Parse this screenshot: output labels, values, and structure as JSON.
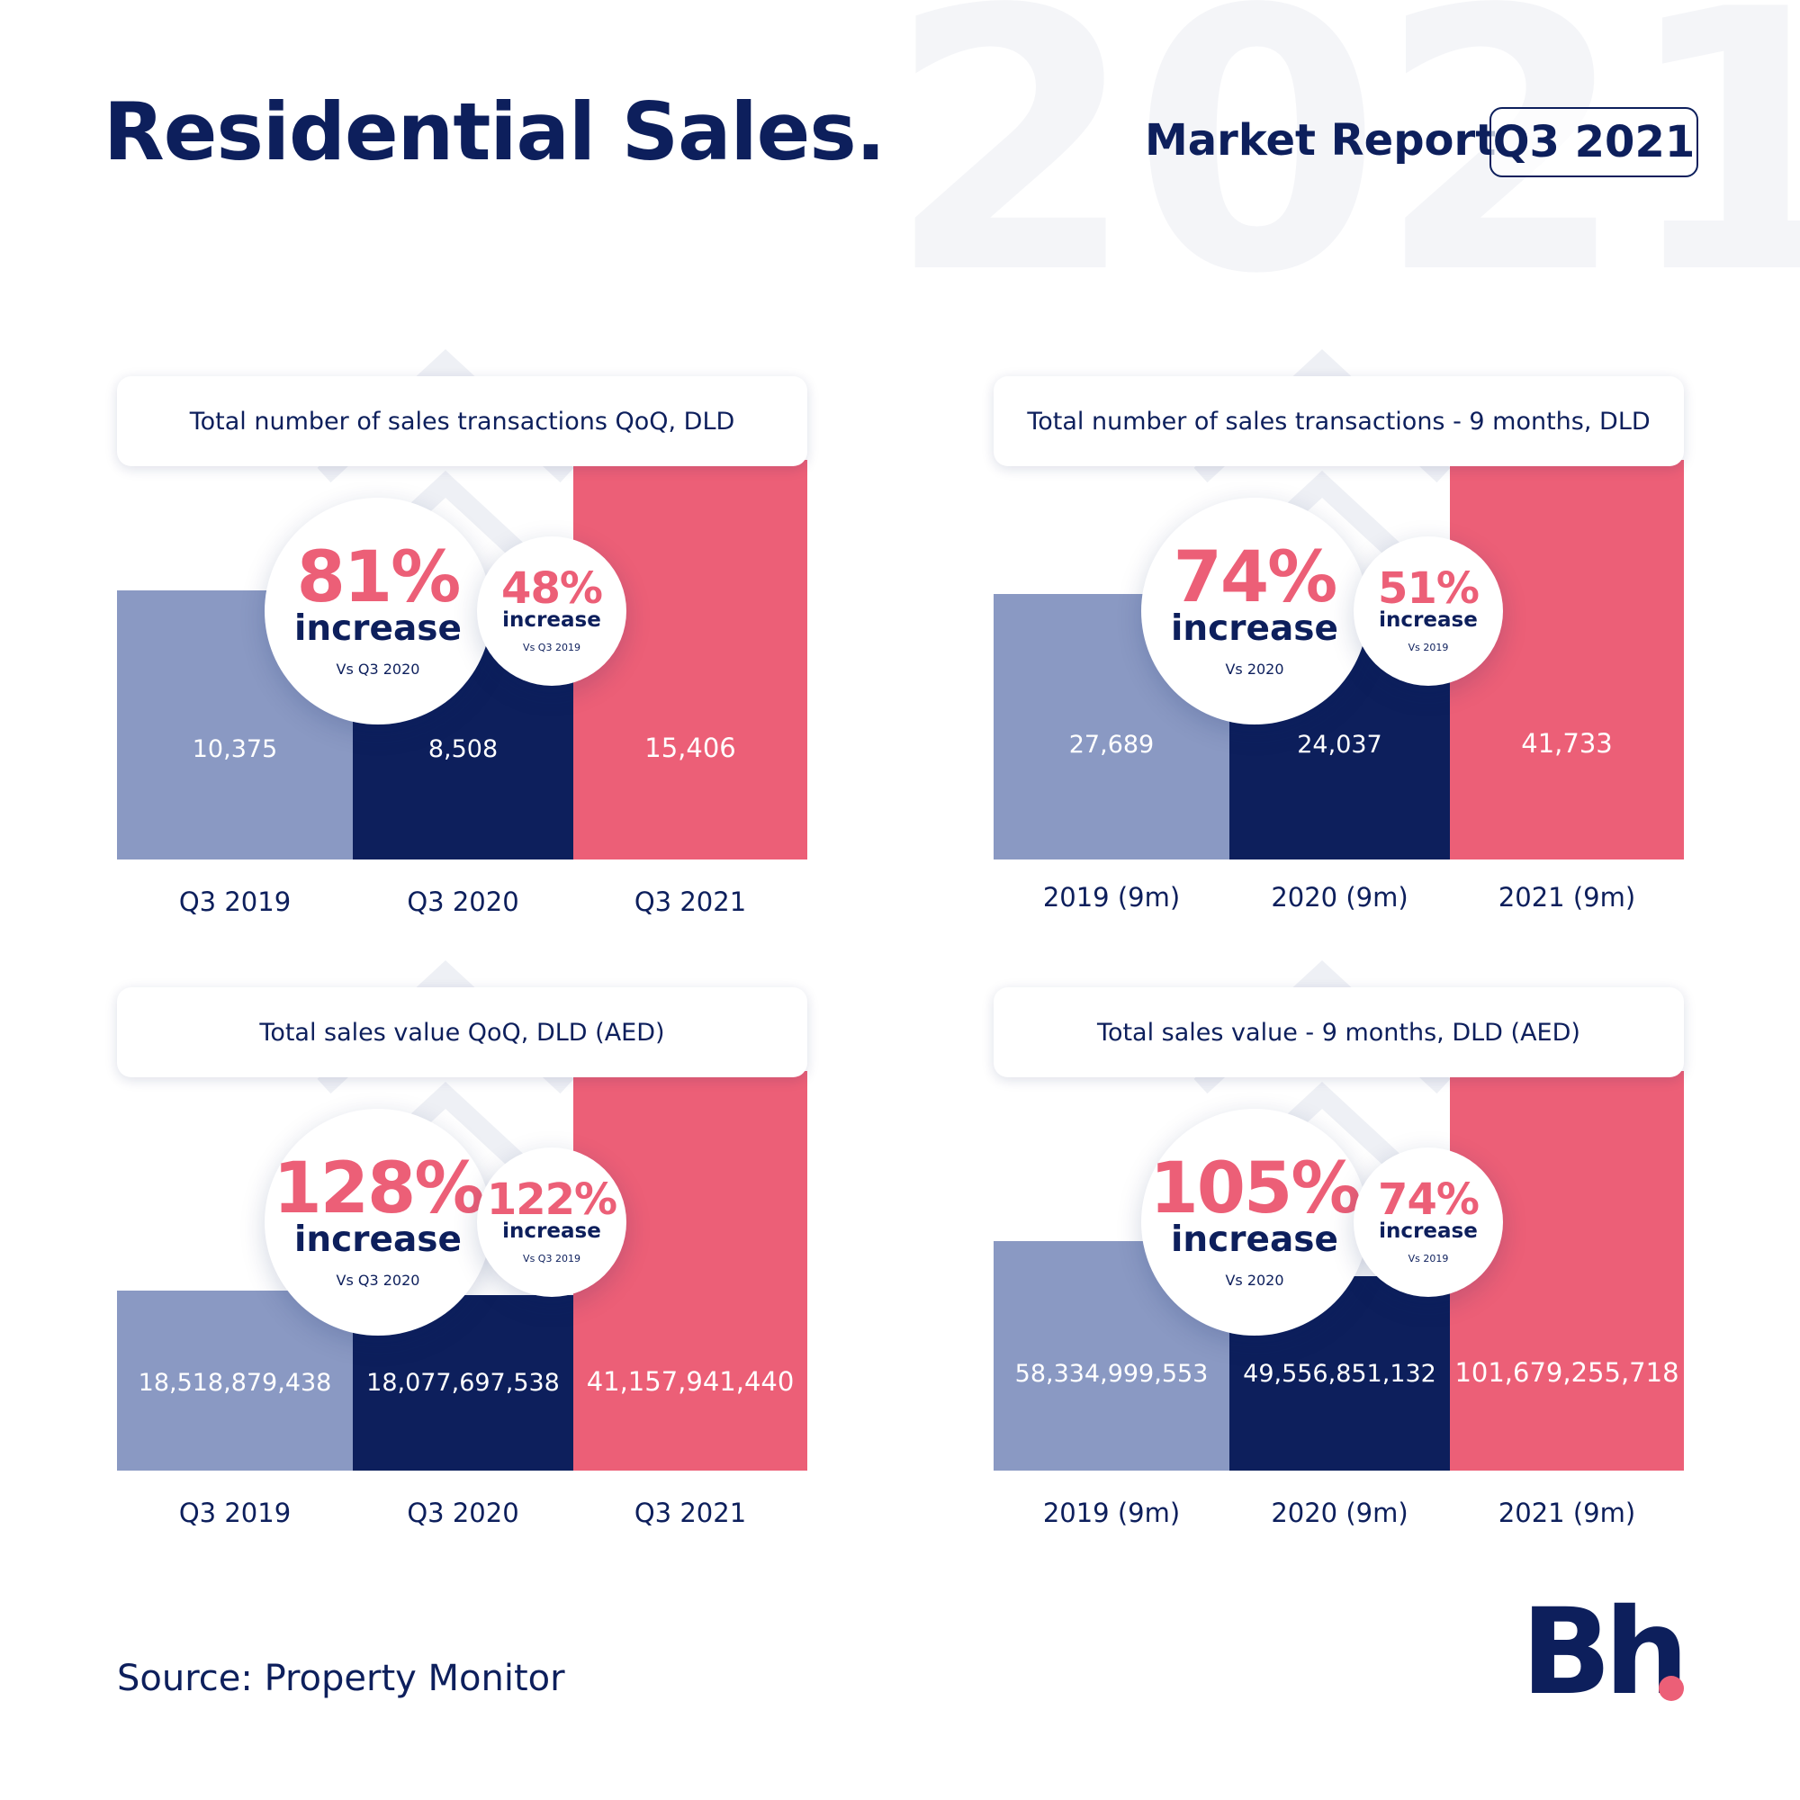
{
  "header": {
    "background_year": "2021",
    "title": "Residential Sales.",
    "report_label": "Market Report",
    "quarter": "Q3 2021"
  },
  "colors": {
    "navy": "#0d1f5c",
    "light_blue": "#8a99c3",
    "pink": "#ec5f77"
  },
  "panels": [
    {
      "title": "Total number of sales transactions QoQ, DLD",
      "big": {
        "pct": "81%",
        "word": "increase",
        "vs": "Vs Q3 2020"
      },
      "small": {
        "pct": "48%",
        "word": "increase",
        "vs": "Vs Q3 2019"
      },
      "values": [
        "10,375",
        "8,508",
        "15,406"
      ],
      "categories": [
        "Q3 2019",
        "Q3 2020",
        "Q3 2021"
      ]
    },
    {
      "title": "Total number of sales transactions - 9 months, DLD",
      "big": {
        "pct": "74%",
        "word": "increase",
        "vs": "Vs 2020"
      },
      "small": {
        "pct": "51%",
        "word": "increase",
        "vs": "Vs 2019"
      },
      "values": [
        "27,689",
        "24,037",
        "41,733"
      ],
      "categories": [
        "2019 (9m)",
        "2020 (9m)",
        "2021 (9m)"
      ]
    },
    {
      "title": "Total sales value QoQ, DLD (AED)",
      "big": {
        "pct": "128%",
        "word": "increase",
        "vs": "Vs Q3 2020"
      },
      "small": {
        "pct": "122%",
        "word": "increase",
        "vs": "Vs Q3 2019"
      },
      "values": [
        "18,518,879,438",
        "18,077,697,538",
        "41,157,941,440"
      ],
      "categories": [
        "Q3 2019",
        "Q3 2020",
        "Q3 2021"
      ]
    },
    {
      "title": "Total sales value - 9 months, DLD (AED)",
      "big": {
        "pct": "105%",
        "word": "increase",
        "vs": "Vs 2020"
      },
      "small": {
        "pct": "74%",
        "word": "increase",
        "vs": "Vs 2019"
      },
      "values": [
        "58,334,999,553",
        "49,556,851,132",
        "101,679,255,718"
      ],
      "categories": [
        "2019 (9m)",
        "2020 (9m)",
        "2021 (9m)"
      ]
    }
  ],
  "chart_data": [
    {
      "type": "bar",
      "title": "Total number of sales transactions QoQ, DLD",
      "categories": [
        "Q3 2019",
        "Q3 2020",
        "Q3 2021"
      ],
      "values": [
        10375,
        8508,
        15406
      ],
      "annotations": [
        "81% increase Vs Q3 2020",
        "48% increase Vs Q3 2019"
      ]
    },
    {
      "type": "bar",
      "title": "Total number of sales transactions - 9 months, DLD",
      "categories": [
        "2019 (9m)",
        "2020 (9m)",
        "2021 (9m)"
      ],
      "values": [
        27689,
        24037,
        41733
      ],
      "annotations": [
        "74% increase Vs 2020",
        "51% increase Vs 2019"
      ]
    },
    {
      "type": "bar",
      "title": "Total sales value QoQ, DLD (AED)",
      "categories": [
        "Q3 2019",
        "Q3 2020",
        "Q3 2021"
      ],
      "values": [
        18518879438,
        18077697538,
        41157941440
      ],
      "annotations": [
        "128% increase Vs Q3 2020",
        "122% increase Vs Q3 2019"
      ]
    },
    {
      "type": "bar",
      "title": "Total sales value - 9 months, DLD (AED)",
      "categories": [
        "2019 (9m)",
        "2020 (9m)",
        "2021 (9m)"
      ],
      "values": [
        58334999553,
        49556851132,
        101679255718
      ],
      "annotations": [
        "105% increase Vs 2020",
        "74% increase Vs 2019"
      ]
    }
  ],
  "footer": {
    "source": "Source: Property Monitor",
    "logo_text": "Bh"
  }
}
